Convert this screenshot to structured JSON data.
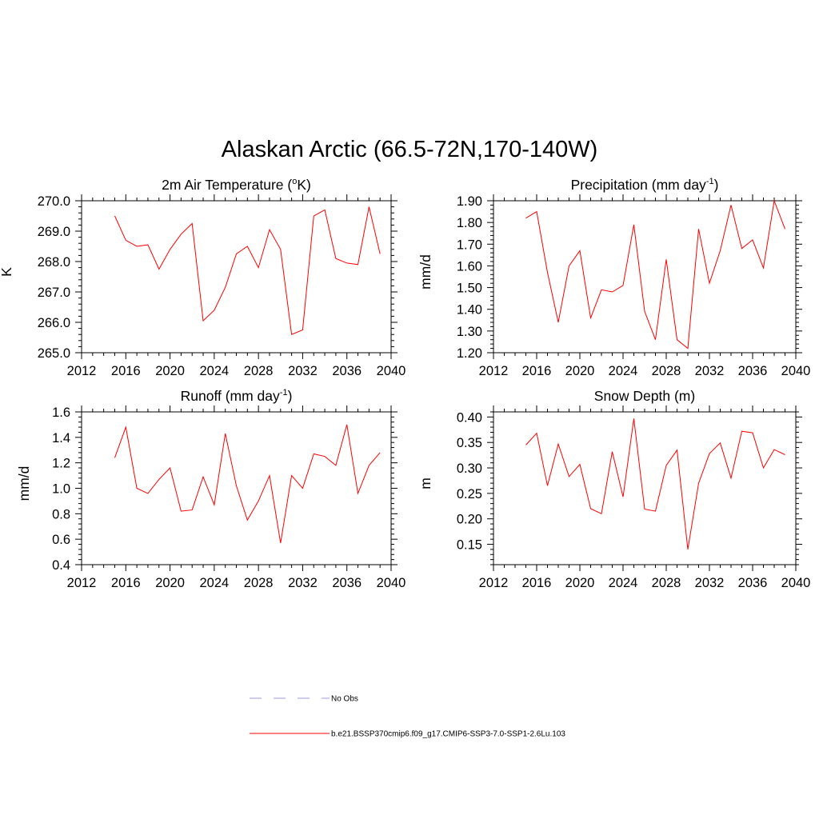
{
  "main_title": "Alaskan Arctic (66.5-72N,170-140W)",
  "colors": {
    "model_line": "#ff0000",
    "obs_line": "#b0b0e0",
    "axis": "#000000"
  },
  "legend": {
    "obs_label": "No Obs",
    "model_label": "b.e21.BSSP370cmip6.f09_g17.CMIP6-SSP3-7.0-SSP1-2.6Lu.103"
  },
  "chart_data": [
    {
      "type": "line",
      "title": "2m Air Temperature (°K)",
      "title_main": "2m Air Temperature (",
      "title_sup": "o",
      "title_tail": "K)",
      "ylabel": "K",
      "xlim": [
        2012,
        2040
      ],
      "xticks": [
        "2012",
        "2016",
        "2020",
        "2024",
        "2028",
        "2032",
        "2036",
        "2040"
      ],
      "ylim": [
        265.0,
        270.0
      ],
      "yticks": [
        "265.0",
        "266.0",
        "267.0",
        "268.0",
        "269.0",
        "270.0"
      ],
      "series": [
        {
          "x": [
            2015,
            2016,
            2017,
            2018,
            2019,
            2020,
            2021,
            2022,
            2023,
            2024,
            2025,
            2026,
            2027,
            2028,
            2029,
            2030,
            2031,
            2032,
            2033,
            2034,
            2035,
            2036,
            2037,
            2038,
            2039
          ],
          "values": [
            269.5,
            268.7,
            268.5,
            268.55,
            267.75,
            268.4,
            268.9,
            269.25,
            266.05,
            266.4,
            267.15,
            268.25,
            268.5,
            267.8,
            269.05,
            268.4,
            265.6,
            265.75,
            269.5,
            269.7,
            268.1,
            267.95,
            267.9,
            269.8,
            268.25
          ]
        }
      ]
    },
    {
      "type": "line",
      "title": "Precipitation (mm day-1)",
      "title_main": "Precipitation (mm day",
      "title_sup": "-1",
      "title_tail": ")",
      "ylabel": "mm/d",
      "xlim": [
        2012,
        2040
      ],
      "xticks": [
        "2012",
        "2016",
        "2020",
        "2024",
        "2028",
        "2032",
        "2036",
        "2040"
      ],
      "ylim": [
        1.2,
        1.9
      ],
      "yticks": [
        "1.20",
        "1.30",
        "1.40",
        "1.50",
        "1.60",
        "1.70",
        "1.80",
        "1.90"
      ],
      "series": [
        {
          "x": [
            2015,
            2016,
            2017,
            2018,
            2019,
            2020,
            2021,
            2022,
            2023,
            2024,
            2025,
            2026,
            2027,
            2028,
            2029,
            2030,
            2031,
            2032,
            2033,
            2034,
            2035,
            2036,
            2037,
            2038,
            2039
          ],
          "values": [
            1.82,
            1.85,
            1.57,
            1.34,
            1.6,
            1.67,
            1.36,
            1.49,
            1.48,
            1.51,
            1.79,
            1.39,
            1.26,
            1.63,
            1.26,
            1.22,
            1.77,
            1.52,
            1.67,
            1.88,
            1.68,
            1.72,
            1.59,
            1.9,
            1.77
          ]
        }
      ]
    },
    {
      "type": "line",
      "title": "Runoff (mm day-1)",
      "title_main": "Runoff (mm day",
      "title_sup": "-1",
      "title_tail": ")",
      "ylabel": "mm/d",
      "xlim": [
        2012,
        2040
      ],
      "xticks": [
        "2012",
        "2016",
        "2020",
        "2024",
        "2028",
        "2032",
        "2036",
        "2040"
      ],
      "ylim": [
        0.4,
        1.6
      ],
      "yticks": [
        "0.4",
        "0.6",
        "0.8",
        "1.0",
        "1.2",
        "1.4",
        "1.6"
      ],
      "series": [
        {
          "x": [
            2015,
            2016,
            2017,
            2018,
            2019,
            2020,
            2021,
            2022,
            2023,
            2024,
            2025,
            2026,
            2027,
            2028,
            2029,
            2030,
            2031,
            2032,
            2033,
            2034,
            2035,
            2036,
            2037,
            2038,
            2039
          ],
          "values": [
            1.24,
            1.48,
            1.0,
            0.96,
            1.07,
            1.16,
            0.82,
            0.83,
            1.09,
            0.87,
            1.43,
            1.02,
            0.75,
            0.9,
            1.1,
            0.57,
            1.1,
            1.0,
            1.27,
            1.25,
            1.18,
            1.5,
            0.96,
            1.18,
            1.28
          ]
        }
      ]
    },
    {
      "type": "line",
      "title": "Snow Depth (m)",
      "title_main": "Snow Depth (m)",
      "title_sup": "",
      "title_tail": "",
      "ylabel": "m",
      "xlim": [
        2012,
        2040
      ],
      "xticks": [
        "2012",
        "2016",
        "2020",
        "2024",
        "2028",
        "2032",
        "2036",
        "2040"
      ],
      "ylim": [
        0.11,
        0.41
      ],
      "yticks": [
        "0.15",
        "0.20",
        "0.25",
        "0.30",
        "0.35",
        "0.40"
      ],
      "series": [
        {
          "x": [
            2015,
            2016,
            2017,
            2018,
            2019,
            2020,
            2021,
            2022,
            2023,
            2024,
            2025,
            2026,
            2027,
            2028,
            2029,
            2030,
            2031,
            2032,
            2033,
            2034,
            2035,
            2036,
            2037,
            2038,
            2039
          ],
          "values": [
            0.345,
            0.368,
            0.265,
            0.347,
            0.283,
            0.307,
            0.22,
            0.21,
            0.332,
            0.243,
            0.397,
            0.219,
            0.215,
            0.305,
            0.335,
            0.14,
            0.27,
            0.328,
            0.349,
            0.28,
            0.372,
            0.369,
            0.3,
            0.336,
            0.326
          ]
        }
      ]
    }
  ]
}
